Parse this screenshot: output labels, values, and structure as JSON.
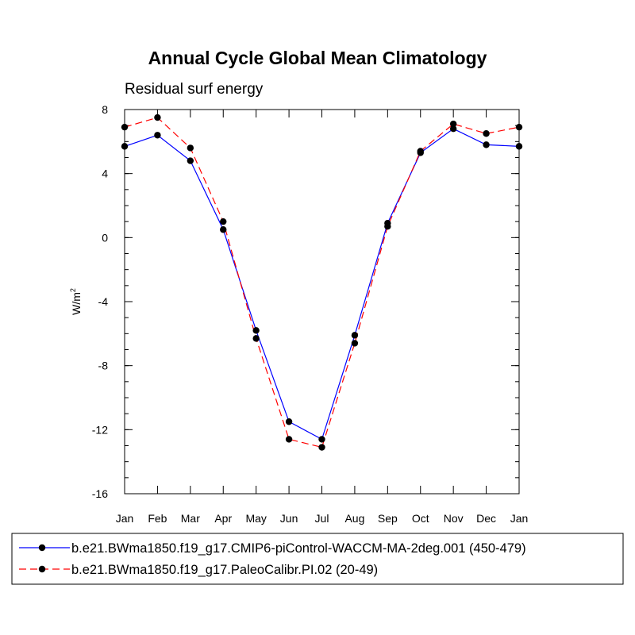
{
  "chart_data": {
    "type": "line",
    "title": "Annual Cycle Global Mean Climatology",
    "subtitle": "Residual surf energy",
    "xlabel": "",
    "ylabel": "W/m",
    "ylabel_superscript": "2",
    "categories": [
      "Jan",
      "Feb",
      "Mar",
      "Apr",
      "May",
      "Jun",
      "Jul",
      "Aug",
      "Sep",
      "Oct",
      "Nov",
      "Dec",
      "Jan"
    ],
    "ylim": [
      -16,
      8
    ],
    "yticks": [
      8,
      4,
      0,
      -4,
      -8,
      -12,
      -16
    ],
    "ytick_labels": [
      "8",
      "4",
      "0",
      "-4",
      "-8",
      "-12",
      "-16"
    ],
    "grid": false,
    "legend_position": "bottom",
    "series": [
      {
        "name": "b.e21.BWma1850.f19_g17.CMIP6-piControl-WACCM-MA-2deg.001 (450-479)",
        "color": "#0000ff",
        "dash": "solid",
        "values": [
          5.7,
          6.4,
          4.8,
          0.5,
          -5.8,
          -11.5,
          -12.6,
          -6.1,
          0.9,
          5.3,
          6.8,
          5.8,
          5.7
        ]
      },
      {
        "name": "b.e21.BWma1850.f19_g17.PaleoCalibr.PI.02 (20-49)",
        "color": "#ff0000",
        "dash": "dashed",
        "values": [
          6.9,
          7.5,
          5.6,
          1.0,
          -6.3,
          -12.6,
          -13.1,
          -6.6,
          0.7,
          5.4,
          7.1,
          6.5,
          6.9
        ]
      }
    ]
  }
}
